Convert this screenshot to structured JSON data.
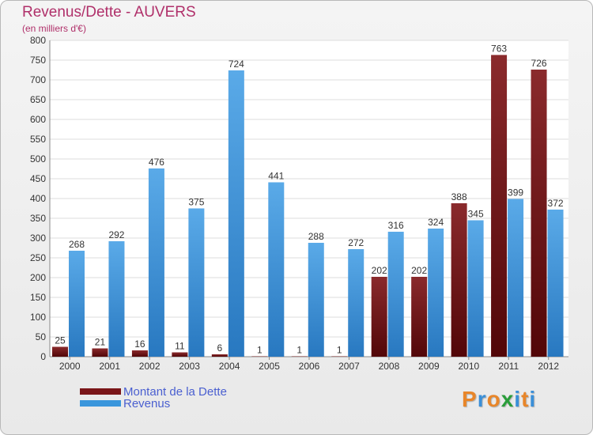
{
  "chart_data": {
    "type": "bar",
    "title": "Revenus/Dette - AUVERS",
    "subtitle": "(en milliers d'€)",
    "categories": [
      "2000",
      "2001",
      "2002",
      "2003",
      "2004",
      "2005",
      "2006",
      "2007",
      "2008",
      "2009",
      "2010",
      "2011",
      "2012"
    ],
    "series": [
      {
        "name": "Montant de la Dette",
        "color": "#7a1518",
        "values": [
          25,
          21,
          16,
          11,
          6,
          1,
          1,
          1,
          202,
          202,
          388,
          763,
          726
        ]
      },
      {
        "name": "Revenus",
        "color": "#3a96dc",
        "values": [
          268,
          292,
          476,
          375,
          724,
          441,
          288,
          272,
          316,
          324,
          345,
          399,
          372
        ]
      }
    ],
    "ylim": [
      0,
      800
    ],
    "yticks": [
      0,
      50,
      100,
      150,
      200,
      250,
      300,
      350,
      400,
      450,
      500,
      550,
      600,
      650,
      700,
      750,
      800
    ],
    "grid": true,
    "legend_position": "bottom-left"
  },
  "logo": {
    "letters": [
      {
        "ch": "P",
        "color": "#e8862a"
      },
      {
        "ch": "r",
        "color": "#3a8fd8"
      },
      {
        "ch": "o",
        "color": "#e8862a"
      },
      {
        "ch": "x",
        "color": "#2a9d3a"
      },
      {
        "ch": "i",
        "color": "#3a8fd8"
      },
      {
        "ch": "t",
        "color": "#e8862a"
      },
      {
        "ch": "i",
        "color": "#3a8fd8"
      }
    ]
  }
}
